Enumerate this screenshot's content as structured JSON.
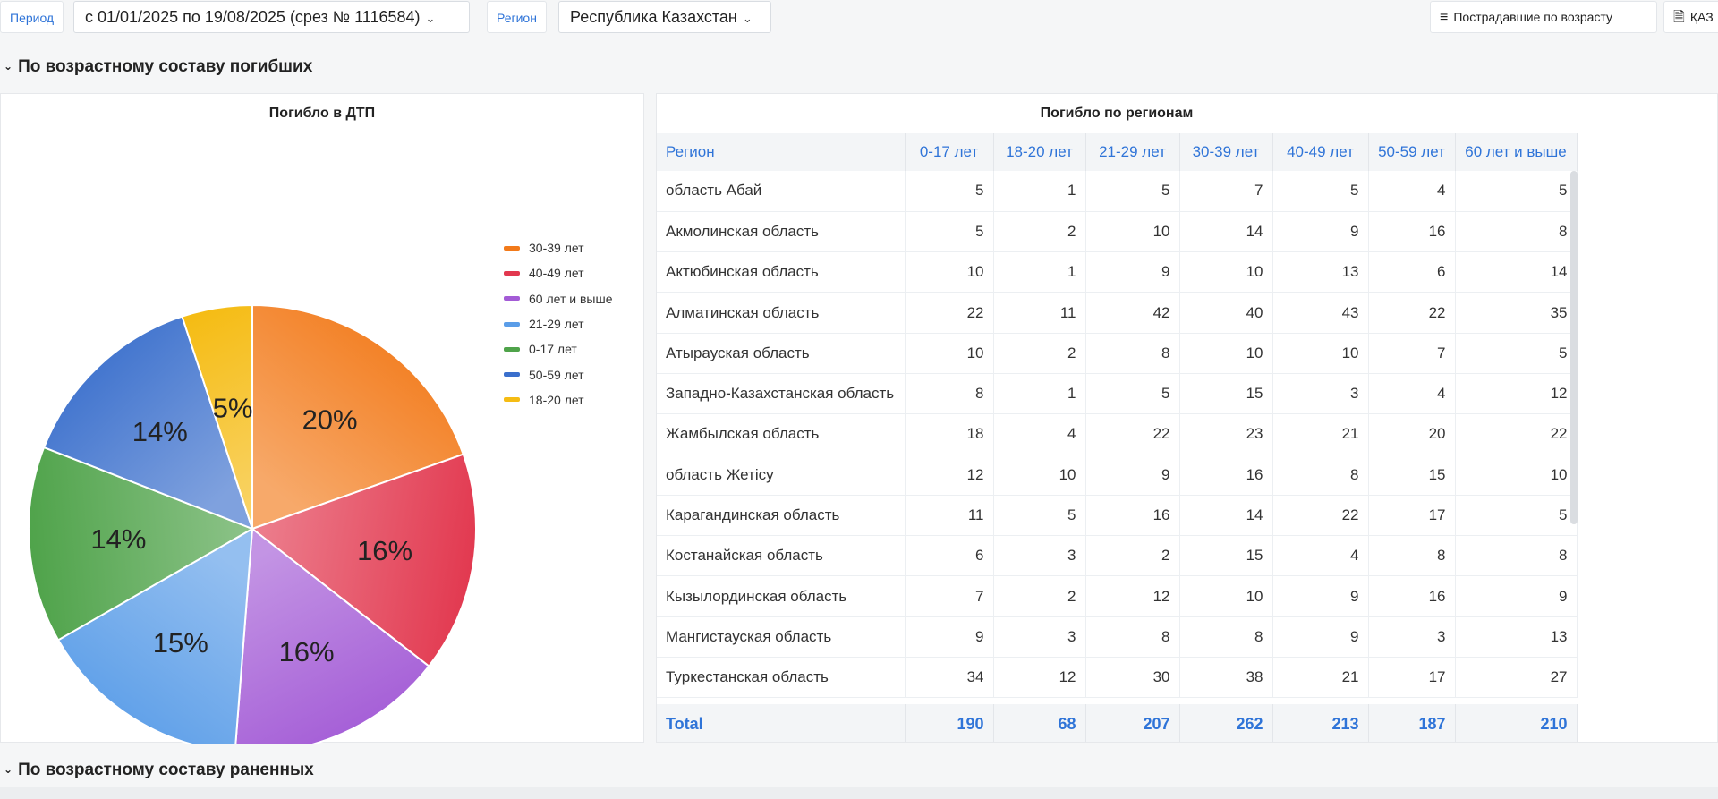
{
  "filters": {
    "period_label": "Период",
    "period_value": "с 01/01/2025 по 19/08/2025 (срез № 1116584)",
    "region_label": "Регион",
    "region_value": "Республика Казахстан",
    "btn_age": "Пострадавшие по возрасту",
    "btn_doc": "ҚАЗ"
  },
  "sections": {
    "deaths": "По возрастному составу погибших",
    "injured": "По возрастному составу раненных"
  },
  "pie": {
    "title": "Погибло в ДТП",
    "legend": [
      {
        "label": "30-39 лет",
        "color": "#f27a1a"
      },
      {
        "label": "40-49 лет",
        "color": "#e2384f"
      },
      {
        "label": "60 лет и выше",
        "color": "#a35bd6"
      },
      {
        "label": "21-29 лет",
        "color": "#5a9de8"
      },
      {
        "label": "0-17 лет",
        "color": "#4fa34a"
      },
      {
        "label": "50-59 лет",
        "color": "#3a6fcc"
      },
      {
        "label": "18-20 лет",
        "color": "#f5bc14"
      }
    ]
  },
  "chart_data": {
    "type": "pie",
    "title": "Погибло в ДТП",
    "slices": [
      {
        "label": "30-39 лет",
        "value": 262,
        "percent_label": "20%"
      },
      {
        "label": "40-49 лет",
        "value": 213,
        "percent_label": "16%"
      },
      {
        "label": "60 лет и выше",
        "value": 210,
        "percent_label": "16%"
      },
      {
        "label": "21-29 лет",
        "value": 207,
        "percent_label": "15%"
      },
      {
        "label": "0-17 лет",
        "value": 190,
        "percent_label": "14%"
      },
      {
        "label": "50-59 лет",
        "value": 187,
        "percent_label": "14%"
      },
      {
        "label": "18-20 лет",
        "value": 68,
        "percent_label": "5%"
      }
    ],
    "legend_position": "top-right"
  },
  "table": {
    "title": "Погибло по регионам",
    "columns": [
      "Регион",
      "0-17 лет",
      "18-20 лет",
      "21-29 лет",
      "30-39 лет",
      "40-49 лет",
      "50-59 лет",
      "60 лет и выше"
    ],
    "rows": [
      [
        "область Абай",
        "5",
        "1",
        "5",
        "7",
        "5",
        "4",
        "5"
      ],
      [
        "Акмолинская область",
        "5",
        "2",
        "10",
        "14",
        "9",
        "16",
        "8"
      ],
      [
        "Актюбинская область",
        "10",
        "1",
        "9",
        "10",
        "13",
        "6",
        "14"
      ],
      [
        "Алматинская область",
        "22",
        "11",
        "42",
        "40",
        "43",
        "22",
        "35"
      ],
      [
        "Атырауская область",
        "10",
        "2",
        "8",
        "10",
        "10",
        "7",
        "5"
      ],
      [
        "Западно-Казахстанская область",
        "8",
        "1",
        "5",
        "15",
        "3",
        "4",
        "12"
      ],
      [
        "Жамбылская область",
        "18",
        "4",
        "22",
        "23",
        "21",
        "20",
        "22"
      ],
      [
        "область Жетісу",
        "12",
        "10",
        "9",
        "16",
        "8",
        "15",
        "10"
      ],
      [
        "Карагандинская область",
        "11",
        "5",
        "16",
        "14",
        "22",
        "17",
        "5"
      ],
      [
        "Костанайская область",
        "6",
        "3",
        "2",
        "15",
        "4",
        "8",
        "8"
      ],
      [
        "Кызылординская область",
        "7",
        "2",
        "12",
        "10",
        "9",
        "16",
        "9"
      ],
      [
        "Мангистауская область",
        "9",
        "3",
        "8",
        "8",
        "9",
        "3",
        "13"
      ],
      [
        "Туркестанская область",
        "34",
        "12",
        "30",
        "38",
        "21",
        "17",
        "27"
      ]
    ],
    "total": [
      "Total",
      "190",
      "68",
      "207",
      "262",
      "213",
      "187",
      "210"
    ]
  }
}
